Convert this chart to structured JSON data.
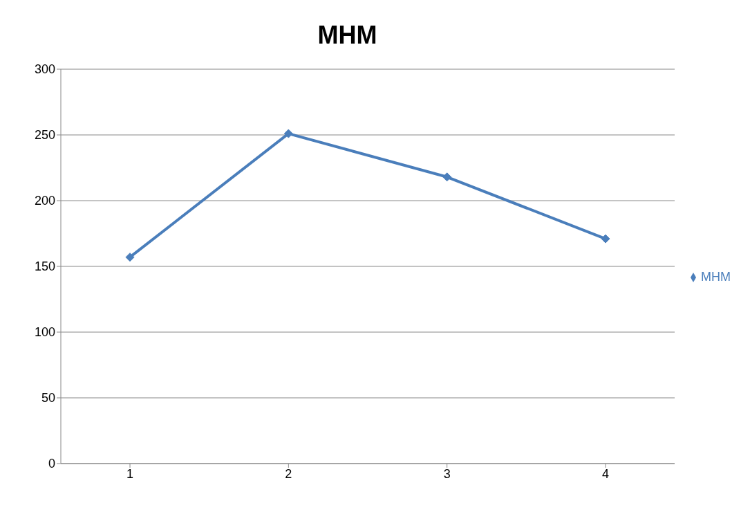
{
  "chart_data": {
    "type": "line",
    "title": "MHM",
    "categories": [
      "1",
      "2",
      "3",
      "4"
    ],
    "series": [
      {
        "name": "MHM",
        "color": "#4a7ebb",
        "values": [
          157,
          251,
          218,
          171
        ]
      }
    ],
    "ylim": [
      0,
      300
    ],
    "yticks": [
      0,
      50,
      100,
      150,
      200,
      250,
      300
    ],
    "grid": "y",
    "legend": "right",
    "marker": "diamond",
    "line_style": "solid"
  }
}
